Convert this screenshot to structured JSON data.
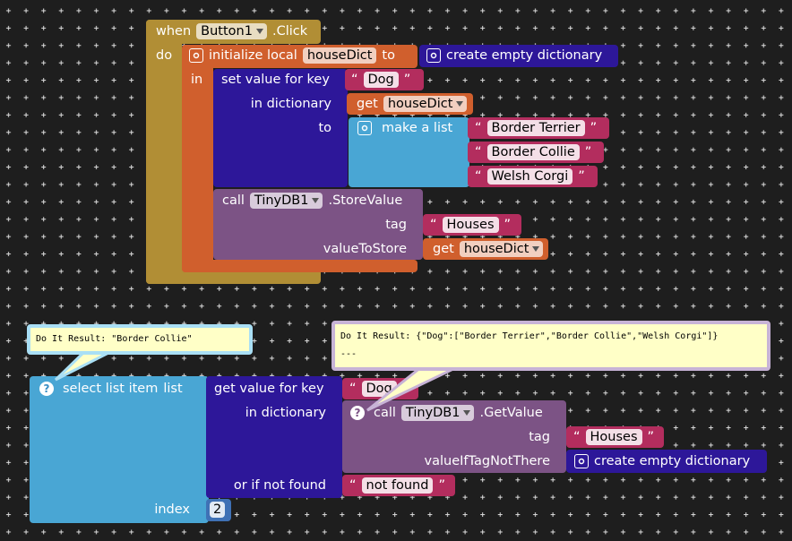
{
  "quote": {
    "open": "“",
    "close": "”"
  },
  "event_block": {
    "when": "when",
    "component": "Button1",
    "event": ".Click",
    "do": "do"
  },
  "initialize_block": {
    "label": "initialize local",
    "name": "houseDict",
    "to": "to",
    "in": "in",
    "value": "create empty dictionary"
  },
  "set_value_block": {
    "label": "set value for key",
    "key": "Dog",
    "in_dictionary": "in dictionary",
    "get": "get",
    "dictionary": "houseDict",
    "to": "to",
    "make_list": "make a list",
    "items": [
      "Border Terrier",
      "Border Collie",
      "Welsh Corgi"
    ]
  },
  "store_value_block": {
    "call": "call",
    "component": "TinyDB1",
    "method": ".StoreValue",
    "tag_label": "tag",
    "tag": "Houses",
    "value_label": "valueToStore",
    "get": "get",
    "value": "houseDict"
  },
  "tooltips": [
    {
      "lines": [
        "Do It Result: \"Border Collie\""
      ]
    },
    {
      "lines": [
        "Do It Result: {\"Dog\":[\"Border Terrier\",\"Border Collie\",\"Welsh Corgi\"]}",
        "---"
      ]
    }
  ],
  "select_block": {
    "help_icon": "?",
    "label": "select list item",
    "list": "list",
    "index_label": "index",
    "index": 2
  },
  "get_value_block": {
    "label": "get value for key",
    "key": "Dog",
    "in_dictionary": "in dictionary",
    "not_found_label": "or if not found",
    "not_found": "not found"
  },
  "get_db_block": {
    "call": "call",
    "component": "TinyDB1",
    "method": ".GetValue",
    "tag_label": "tag",
    "tag": "Houses",
    "default_label": "valueIfTagNotThere",
    "default": "create empty dictionary"
  }
}
